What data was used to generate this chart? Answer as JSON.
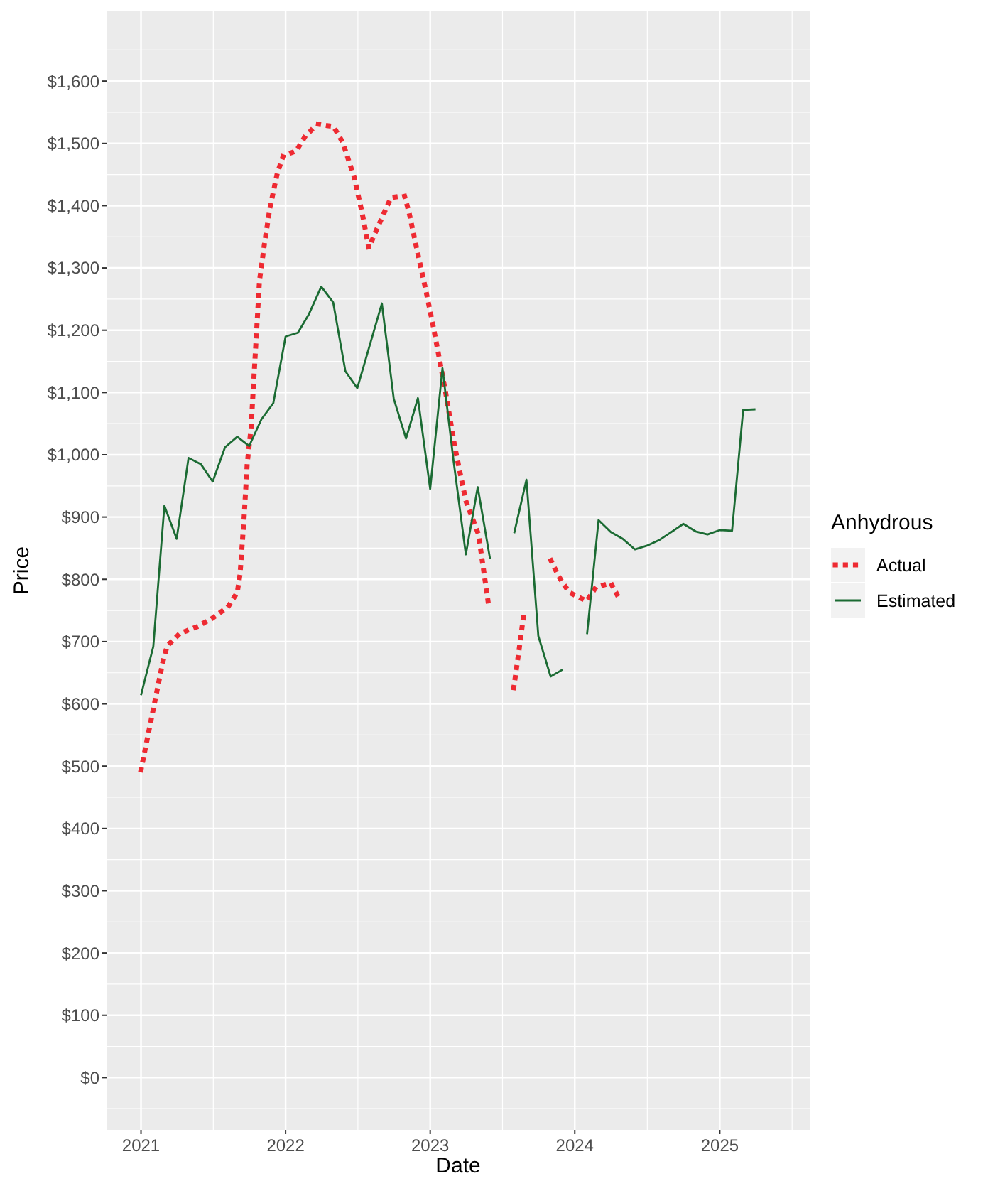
{
  "chart_data": {
    "type": "line",
    "xlabel": "Date",
    "ylabel": "Price",
    "legend_title": "Anhydrous",
    "legend": "right",
    "grid": true,
    "xlim": [
      "2020-10-06",
      "2025-08-16"
    ],
    "xticks": [
      {
        "value": "2021-01-01",
        "label": "2021"
      },
      {
        "value": "2022-01-01",
        "label": "2022"
      },
      {
        "value": "2023-01-01",
        "label": "2023"
      },
      {
        "value": "2024-01-01",
        "label": "2024"
      },
      {
        "value": "2025-01-01",
        "label": "2025"
      }
    ],
    "ylim": [
      -84,
      1712
    ],
    "yticks": [
      {
        "value": 0,
        "label": "$0"
      },
      {
        "value": 100,
        "label": "$100"
      },
      {
        "value": 200,
        "label": "$200"
      },
      {
        "value": 300,
        "label": "$300"
      },
      {
        "value": 400,
        "label": "$400"
      },
      {
        "value": 500,
        "label": "$500"
      },
      {
        "value": 600,
        "label": "$600"
      },
      {
        "value": 700,
        "label": "$700"
      },
      {
        "value": 800,
        "label": "$800"
      },
      {
        "value": 900,
        "label": "$900"
      },
      {
        "value": 1000,
        "label": "$1,000"
      },
      {
        "value": 1100,
        "label": "$1,100"
      },
      {
        "value": 1200,
        "label": "$1,200"
      },
      {
        "value": 1300,
        "label": "$1,300"
      },
      {
        "value": 1400,
        "label": "$1,400"
      },
      {
        "value": 1500,
        "label": "$1,500"
      },
      {
        "value": 1600,
        "label": "$1,600"
      }
    ],
    "series": [
      {
        "name": "Actual",
        "color": "#ee2a32",
        "line_style": "dotted",
        "x": [
          "2021-01-01",
          "2021-02-25",
          "2021-03-08",
          "2021-04-09",
          "2021-05-23",
          "2021-07-01",
          "2021-08-09",
          "2021-09-01",
          "2021-09-08",
          "2021-09-18",
          "2021-09-26",
          "2021-10-06",
          "2021-10-11",
          "2021-10-19",
          "2021-10-27",
          "2021-11-08",
          "2021-11-22",
          "2021-12-11",
          "2021-12-26",
          "2022-01-28",
          "2022-02-19",
          "2022-03-22",
          "2022-05-02",
          "2022-05-25",
          "2022-06-23",
          "2022-07-13",
          "2022-07-30",
          "2022-08-17",
          "2022-09-05",
          "2022-09-24",
          "2022-10-28",
          "2022-11-09",
          "2022-11-28",
          "2022-12-18",
          "2023-01-06",
          "2023-01-23",
          "2023-02-09",
          "2023-03-04",
          "2023-04-01",
          "2023-05-03",
          "2023-05-16",
          "2023-05-29",
          "2023-06-30",
          "2023-07-31",
          "2023-08-13",
          "2023-08-25",
          "2023-10-01",
          "2023-11-02",
          "2023-11-22",
          "2023-12-18",
          "2024-01-31",
          "2024-02-23",
          "2024-04-01",
          "2024-04-23"
        ],
        "values": [
          494,
          667,
          693,
          713,
          724,
          738,
          756,
          779,
          808,
          897,
          985,
          1044,
          1102,
          1190,
          1279,
          1336,
          1395,
          1452,
          1480,
          1488,
          1511,
          1531,
          1527,
          1502,
          1446,
          1389,
          1332,
          1359,
          1386,
          1413,
          1416,
          1388,
          1331,
          1273,
          1215,
          1158,
          1100,
          1013,
          926,
          872,
          814,
          756,
          null,
          626,
          685,
          743,
          null,
          830,
          804,
          779,
          765,
          787,
          794,
          768
        ]
      },
      {
        "name": "Estimated",
        "color": "#1b6b33",
        "line_style": "solid",
        "x": [
          "2021-01-01",
          "2021-02-01",
          "2021-03-01",
          "2021-04-01",
          "2021-05-01",
          "2021-06-01",
          "2021-07-01",
          "2021-08-01",
          "2021-09-01",
          "2021-10-01",
          "2021-11-01",
          "2021-12-01",
          "2022-01-01",
          "2022-02-01",
          "2022-03-01",
          "2022-04-01",
          "2022-05-01",
          "2022-06-01",
          "2022-07-01",
          "2022-08-01",
          "2022-09-01",
          "2022-10-01",
          "2022-11-01",
          "2022-12-01",
          "2023-01-01",
          "2023-02-01",
          "2023-03-01",
          "2023-04-01",
          "2023-05-01",
          "2023-06-01",
          "2023-07-01",
          "2023-08-01",
          "2023-09-01",
          "2023-10-01",
          "2023-11-01",
          "2023-12-01",
          "2024-01-01",
          "2024-02-01",
          "2024-03-01",
          "2024-04-01",
          "2024-05-01",
          "2024-06-01",
          "2024-07-01",
          "2024-08-01",
          "2024-09-01",
          "2024-10-01",
          "2024-11-01",
          "2024-12-01",
          "2025-01-01",
          "2025-02-01",
          "2025-03-01",
          "2025-04-01"
        ],
        "values": [
          614,
          692,
          918,
          865,
          995,
          985,
          957,
          1012,
          1029,
          1014,
          1057,
          1083,
          1190,
          1196,
          1226,
          1270,
          1245,
          1134,
          1107,
          1175,
          1243,
          1090,
          1026,
          1091,
          945,
          1139,
          990,
          840,
          948,
          833,
          null,
          874,
          960,
          709,
          644,
          655,
          null,
          712,
          895,
          876,
          865,
          848,
          854,
          863,
          876,
          889,
          877,
          872,
          879,
          878,
          1072,
          1073
        ]
      }
    ]
  }
}
